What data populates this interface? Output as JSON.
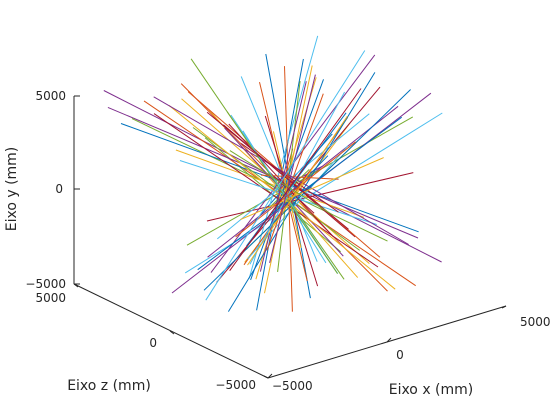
{
  "chart_data": {
    "type": "line3d",
    "title": "",
    "xlabel": "Eixo x (mm)",
    "ylabel": "Eixo y (mm)",
    "zlabel": "Eixo z (mm)",
    "xlim": [
      -5000,
      5000
    ],
    "ylim": [
      -5000,
      5000
    ],
    "zlim": [
      -5000,
      5000
    ],
    "xticks": [
      -5000,
      0,
      5000
    ],
    "yticks": [
      -5000,
      0,
      5000
    ],
    "zticks": [
      -5000,
      0,
      5000
    ],
    "xtick_labels": [
      "−5000",
      "0",
      "5000"
    ],
    "ytick_labels": [
      "−5000",
      "0",
      "5000"
    ],
    "ztick_labels": [
      "−5000",
      "0",
      "5000"
    ],
    "grid": false,
    "legend": false,
    "colors": [
      "#0072BD",
      "#D95319",
      "#EDB120",
      "#7E2F8E",
      "#77AC30",
      "#4DBEEE",
      "#A2142F"
    ],
    "note_counts": {
      "segment_count": 70
    }
  }
}
